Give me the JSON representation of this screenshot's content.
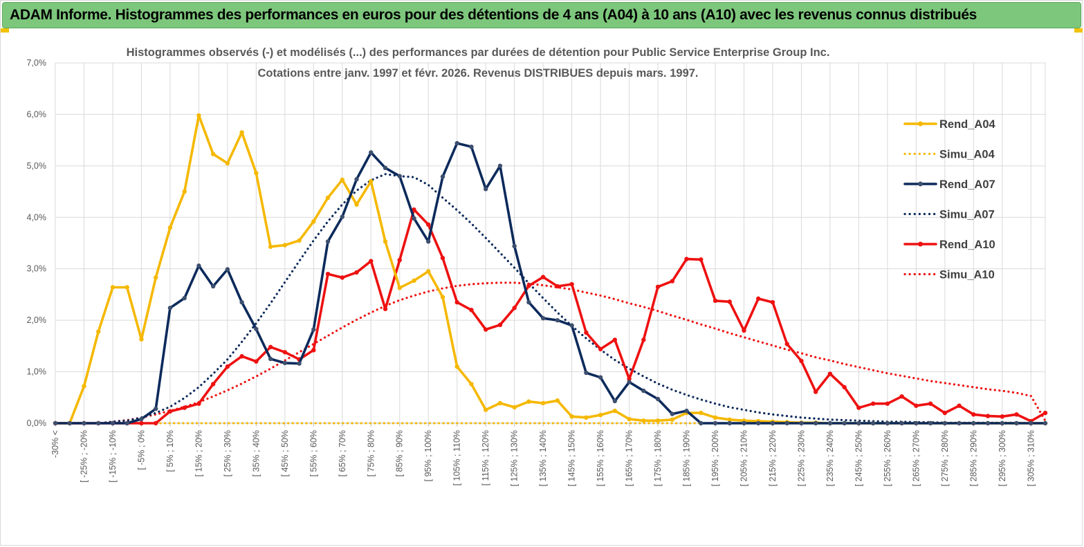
{
  "banner": {
    "title": "ADAM Informe. Histogrammes des performances en euros pour des détentions de 4 ans (A04) à 10 ans (A10) avec les revenus connus distribués"
  },
  "chart_data": {
    "type": "line",
    "title_line1": "Histogrammes observés (-) et modélisés (...) des performances par durées de détention pour Public Service  Enterprise Group Inc.",
    "title_line2": "Cotations entre janv. 1997 et févr. 2026. Revenus DISTRIBUES depuis mars. 1997.",
    "ylim": [
      0,
      7
    ],
    "y_ticks": [
      "0,0%",
      "1,0%",
      "2,0%",
      "3,0%",
      "4,0%",
      "5,0%",
      "6,0%",
      "7,0%"
    ],
    "x_tick_labels": [
      "-30% <",
      "[ -25% ; -20%",
      "[ -15% ; -10%",
      "[ -5% ; 0%",
      "[ 5% ; 10%",
      "[ 15% ; 20%",
      "[ 25% ; 30%",
      "[ 35% ; 40%",
      "[ 45% ; 50%",
      "[ 55% ; 60%",
      "[ 65% ; 70%",
      "[ 75% ; 80%",
      "[ 85% ; 90%",
      "[ 95% ; 100%",
      "[ 105% ; 110%",
      "[ 115% ; 120%",
      "[ 125% ; 130%",
      "[ 135% ; 140%",
      "[ 145% ; 150%",
      "[ 155% ; 160%",
      "[ 165% ; 170%",
      "[ 175% ; 180%",
      "[ 185% ; 190%",
      "[ 195% ; 200%",
      "[ 205% ; 210%",
      "[ 215% ; 220%",
      "[ 225% ; 230%",
      "[ 235% ; 240%",
      "[ 245% ; 250%",
      "[ 255% ; 260%",
      "[ 265% ; 270%",
      "[ 275% ; 280%",
      "[ 285% ; 290%",
      "[ 295% ; 300%",
      "[ 305% ; 310%"
    ],
    "n_points": 70,
    "series": [
      {
        "name": "Rend_A04",
        "color": "#f5b800",
        "dash": "solid",
        "markers": true,
        "values": [
          0,
          0,
          0.72,
          1.78,
          2.64,
          2.64,
          1.63,
          2.83,
          3.8,
          4.5,
          5.98,
          5.23,
          5.05,
          5.65,
          4.86,
          3.43,
          3.46,
          3.55,
          3.92,
          4.38,
          4.73,
          4.25,
          4.7,
          3.53,
          2.63,
          2.77,
          2.95,
          2.45,
          1.1,
          0.76,
          0.26,
          0.39,
          0.31,
          0.42,
          0.39,
          0.44,
          0.13,
          0.11,
          0.16,
          0.24,
          0.08,
          0.05,
          0.05,
          0.07,
          0.2,
          0.2,
          0.11,
          0.07,
          0.05,
          0.04,
          0.03,
          0.02,
          0.01,
          0.01,
          0,
          0,
          0,
          0,
          0,
          0,
          0,
          0,
          0,
          0,
          0,
          0,
          0,
          0,
          0,
          0
        ]
      },
      {
        "name": "Simu_A04",
        "color": "#f5b800",
        "dash": "dotted",
        "markers": false,
        "values": [
          0,
          0,
          0,
          0,
          0,
          0,
          0,
          0,
          0,
          0,
          0,
          0,
          0,
          0,
          0,
          0,
          0,
          0,
          0,
          0,
          0,
          0,
          0,
          0,
          0,
          0,
          0,
          0,
          0,
          0,
          0,
          0,
          0,
          0,
          0,
          0,
          0,
          0,
          0,
          0,
          0,
          0,
          0,
          0,
          0,
          0,
          0,
          0,
          0,
          0,
          0,
          0,
          0,
          0,
          0,
          0,
          0,
          0,
          0,
          0,
          0,
          0,
          0,
          0,
          0,
          0,
          0,
          0,
          0,
          0
        ]
      },
      {
        "name": "Rend_A07",
        "color": "#0c2a5b",
        "dash": "solid",
        "markers": true,
        "values": [
          0,
          0,
          0,
          0,
          0,
          0,
          0.08,
          0.28,
          2.24,
          2.43,
          3.06,
          2.66,
          2.99,
          2.35,
          1.83,
          1.25,
          1.17,
          1.16,
          1.82,
          3.53,
          4.01,
          4.74,
          5.26,
          4.96,
          4.8,
          3.98,
          3.53,
          4.79,
          5.44,
          5.37,
          4.55,
          5.0,
          3.44,
          2.35,
          2.04,
          2.0,
          1.9,
          0.98,
          0.89,
          0.43,
          0.8,
          0.63,
          0.47,
          0.18,
          0.24,
          0,
          0,
          0,
          0,
          0,
          0,
          0,
          0,
          0,
          0,
          0,
          0,
          0,
          0,
          0,
          0,
          0,
          0,
          0,
          0,
          0,
          0,
          0,
          0,
          0
        ]
      },
      {
        "name": "Simu_A07",
        "color": "#0c2a5b",
        "dash": "dotted",
        "markers": false,
        "values": [
          0,
          0,
          0,
          0,
          0.03,
          0.05,
          0.11,
          0.2,
          0.32,
          0.49,
          0.7,
          0.96,
          1.24,
          1.58,
          1.94,
          2.33,
          2.74,
          3.15,
          3.55,
          3.92,
          4.25,
          4.52,
          4.72,
          4.84,
          4.8,
          4.78,
          4.63,
          4.38,
          4.14,
          3.88,
          3.6,
          3.31,
          3.02,
          2.72,
          2.43,
          2.15,
          1.89,
          1.65,
          1.43,
          1.23,
          1.06,
          0.91,
          0.77,
          0.65,
          0.55,
          0.46,
          0.38,
          0.31,
          0.26,
          0.21,
          0.17,
          0.14,
          0.11,
          0.09,
          0.07,
          0.06,
          0.05,
          0.04,
          0.03,
          0.03,
          0.02,
          0.02,
          0.01,
          0.01,
          0.01,
          0.01,
          0.01,
          0.01,
          0,
          0
        ]
      },
      {
        "name": "Rend_A10",
        "color": "#ee1111",
        "dash": "solid",
        "markers": true,
        "values": [
          0,
          0,
          0,
          0,
          0,
          0,
          0,
          0,
          0.23,
          0.3,
          0.38,
          0.76,
          1.1,
          1.3,
          1.2,
          1.48,
          1.38,
          1.24,
          1.42,
          2.9,
          2.83,
          2.93,
          3.15,
          2.22,
          3.17,
          4.15,
          3.86,
          3.21,
          2.35,
          2.2,
          1.82,
          1.91,
          2.24,
          2.67,
          2.84,
          2.66,
          2.7,
          1.76,
          1.44,
          1.62,
          0.86,
          1.62,
          2.65,
          2.76,
          3.19,
          3.18,
          2.38,
          2.36,
          1.8,
          2.42,
          2.35,
          1.54,
          1.21,
          0.61,
          0.96,
          0.7,
          0.3,
          0.38,
          0.38,
          0.52,
          0.34,
          0.38,
          0.2,
          0.34,
          0.17,
          0.14,
          0.13,
          0.17,
          0.04,
          0.2
        ]
      },
      {
        "name": "Simu_A10",
        "color": "#ee1111",
        "dash": "dotted",
        "markers": false,
        "values": [
          0,
          0,
          0,
          0,
          0.03,
          0.06,
          0.11,
          0.17,
          0.24,
          0.32,
          0.41,
          0.52,
          0.64,
          0.77,
          0.91,
          1.06,
          1.22,
          1.38,
          1.54,
          1.7,
          1.86,
          2.01,
          2.15,
          2.28,
          2.39,
          2.48,
          2.56,
          2.62,
          2.67,
          2.7,
          2.72,
          2.73,
          2.73,
          2.71,
          2.68,
          2.64,
          2.6,
          2.54,
          2.48,
          2.41,
          2.33,
          2.26,
          2.18,
          2.09,
          2.01,
          1.92,
          1.84,
          1.75,
          1.67,
          1.59,
          1.51,
          1.43,
          1.36,
          1.28,
          1.22,
          1.15,
          1.09,
          1.03,
          0.97,
          0.92,
          0.87,
          0.82,
          0.78,
          0.74,
          0.7,
          0.66,
          0.63,
          0.59,
          0.53,
          0.05
        ]
      }
    ]
  }
}
